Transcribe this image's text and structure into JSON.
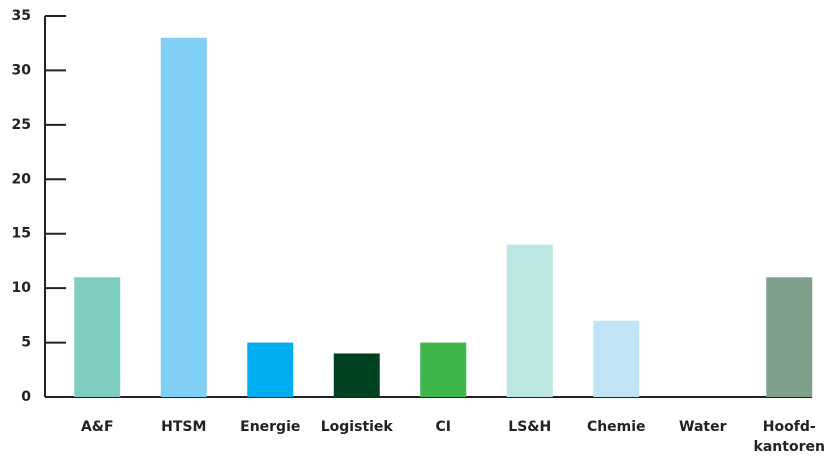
{
  "chart_data": {
    "type": "bar",
    "categories": [
      "A&F",
      "HTSM",
      "Energie",
      "Logistiek",
      "CI",
      "LS&H",
      "Chemie",
      "Water",
      "Hoofd-\nkantoren"
    ],
    "values": [
      11,
      33,
      5,
      4,
      5,
      14,
      7,
      0,
      11
    ],
    "colors": [
      "#7ecdc0",
      "#80cff5",
      "#00adee",
      "#00421f",
      "#3fb54b",
      "#bce6e1",
      "#c0e4f6",
      "#c0e4f6",
      "#80a08b"
    ],
    "ylim": [
      0,
      35
    ],
    "yticks": [
      0,
      5,
      10,
      15,
      20,
      25,
      30,
      35
    ]
  }
}
